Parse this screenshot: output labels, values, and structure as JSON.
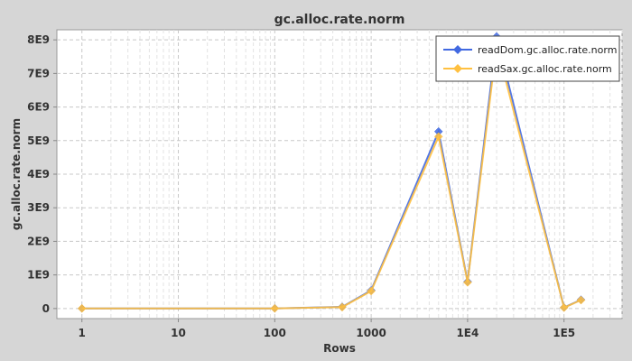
{
  "chart_data": {
    "type": "line",
    "title": "gc.alloc.rate.norm",
    "xlabel": "Rows",
    "ylabel": "gc.alloc.rate.norm",
    "xscale": "log",
    "xlim": [
      0.55,
      400000
    ],
    "ylim": [
      -300000000,
      8300000000
    ],
    "xticks": [
      {
        "value": 1,
        "label": "1"
      },
      {
        "value": 10,
        "label": "10"
      },
      {
        "value": 100,
        "label": "100"
      },
      {
        "value": 1000,
        "label": "1000"
      },
      {
        "value": 10000,
        "label": "1E4"
      },
      {
        "value": 100000,
        "label": "1E5"
      }
    ],
    "yticks": [
      {
        "value": 0,
        "label": "0"
      },
      {
        "value": 1000000000,
        "label": "1E9"
      },
      {
        "value": 2000000000,
        "label": "2E9"
      },
      {
        "value": 3000000000,
        "label": "3E9"
      },
      {
        "value": 4000000000,
        "label": "4E9"
      },
      {
        "value": 5000000000,
        "label": "5E9"
      },
      {
        "value": 6000000000,
        "label": "6E9"
      },
      {
        "value": 7000000000,
        "label": "7E9"
      },
      {
        "value": 8000000000,
        "label": "8E9"
      }
    ],
    "grid": true,
    "legend_position": "top-right",
    "x": [
      1,
      100,
      500,
      1000,
      5000,
      10000,
      20000,
      100000,
      150000
    ],
    "series": [
      {
        "name": "readDom.gc.alloc.rate.norm",
        "color": "#4169e1",
        "values": [
          2000000,
          5000000,
          50000000,
          540000000,
          5270000000,
          800000000,
          8100000000,
          30000000,
          260000000
        ]
      },
      {
        "name": "readSax.gc.alloc.rate.norm",
        "color": "#ffc040",
        "values": [
          1000000,
          3000000,
          40000000,
          520000000,
          5120000000,
          780000000,
          7850000000,
          25000000,
          250000000
        ]
      }
    ]
  }
}
